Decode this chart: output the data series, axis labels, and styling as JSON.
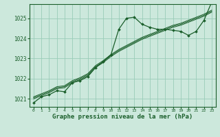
{
  "title": "Graphe pression niveau de la mer (hPa)",
  "background_color": "#cce8dc",
  "grid_color": "#99ccb8",
  "line_color": "#1a5e2a",
  "marker_color": "#1a5e2a",
  "x_values": [
    0,
    1,
    2,
    3,
    4,
    5,
    6,
    7,
    8,
    9,
    10,
    11,
    12,
    13,
    14,
    15,
    16,
    17,
    18,
    19,
    20,
    21,
    22,
    23
  ],
  "series1": [
    1020.8,
    1021.1,
    1021.2,
    1021.4,
    1021.35,
    1021.8,
    1021.9,
    1022.1,
    1022.55,
    1022.85,
    1023.2,
    1024.45,
    1025.0,
    1025.05,
    1024.7,
    1024.55,
    1024.45,
    1024.45,
    1024.4,
    1024.35,
    1024.15,
    1024.35,
    1024.9,
    1025.8
  ],
  "series2": [
    1021.0,
    1021.15,
    1021.3,
    1021.5,
    1021.55,
    1021.8,
    1021.95,
    1022.15,
    1022.55,
    1022.8,
    1023.1,
    1023.35,
    1023.55,
    1023.75,
    1023.95,
    1024.1,
    1024.25,
    1024.4,
    1024.55,
    1024.65,
    1024.8,
    1024.95,
    1025.1,
    1025.3
  ],
  "series3": [
    1021.05,
    1021.2,
    1021.35,
    1021.55,
    1021.6,
    1021.85,
    1022.0,
    1022.2,
    1022.6,
    1022.85,
    1023.15,
    1023.4,
    1023.6,
    1023.8,
    1024.0,
    1024.15,
    1024.3,
    1024.45,
    1024.6,
    1024.7,
    1024.85,
    1025.0,
    1025.15,
    1025.35
  ],
  "series4": [
    1021.1,
    1021.25,
    1021.4,
    1021.6,
    1021.65,
    1021.9,
    1022.05,
    1022.25,
    1022.65,
    1022.9,
    1023.2,
    1023.45,
    1023.65,
    1023.85,
    1024.05,
    1024.2,
    1024.35,
    1024.5,
    1024.65,
    1024.75,
    1024.9,
    1025.05,
    1025.2,
    1025.4
  ],
  "ylim": [
    1020.6,
    1025.7
  ],
  "yticks": [
    1021,
    1022,
    1023,
    1024,
    1025
  ],
  "xticks": [
    0,
    1,
    2,
    3,
    4,
    5,
    6,
    7,
    8,
    9,
    10,
    11,
    12,
    13,
    14,
    15,
    16,
    17,
    18,
    19,
    20,
    21,
    22,
    23
  ]
}
